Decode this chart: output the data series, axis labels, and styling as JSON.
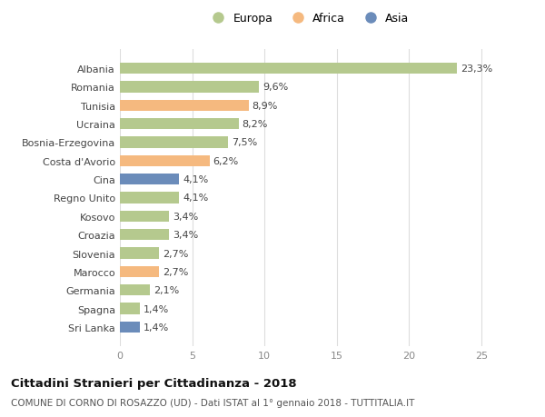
{
  "categories": [
    "Albania",
    "Romania",
    "Tunisia",
    "Ucraina",
    "Bosnia-Erzegovina",
    "Costa d'Avorio",
    "Cina",
    "Regno Unito",
    "Kosovo",
    "Croazia",
    "Slovenia",
    "Marocco",
    "Germania",
    "Spagna",
    "Sri Lanka"
  ],
  "values": [
    23.3,
    9.6,
    8.9,
    8.2,
    7.5,
    6.2,
    4.1,
    4.1,
    3.4,
    3.4,
    2.7,
    2.7,
    2.1,
    1.4,
    1.4
  ],
  "labels": [
    "23,3%",
    "9,6%",
    "8,9%",
    "8,2%",
    "7,5%",
    "6,2%",
    "4,1%",
    "4,1%",
    "3,4%",
    "3,4%",
    "2,7%",
    "2,7%",
    "2,1%",
    "1,4%",
    "1,4%"
  ],
  "continents": [
    "Europa",
    "Europa",
    "Africa",
    "Europa",
    "Europa",
    "Africa",
    "Asia",
    "Europa",
    "Europa",
    "Europa",
    "Europa",
    "Africa",
    "Europa",
    "Europa",
    "Asia"
  ],
  "colors": {
    "Europa": "#b5c98e",
    "Africa": "#f5b97f",
    "Asia": "#6b8cba"
  },
  "title": "Cittadini Stranieri per Cittadinanza - 2018",
  "subtitle": "COMUNE DI CORNO DI ROSAZZO (UD) - Dati ISTAT al 1° gennaio 2018 - TUTTITALIA.IT",
  "xlim": [
    0,
    26
  ],
  "xticks": [
    0,
    5,
    10,
    15,
    20,
    25
  ],
  "background_color": "#ffffff",
  "grid_color": "#dddddd"
}
